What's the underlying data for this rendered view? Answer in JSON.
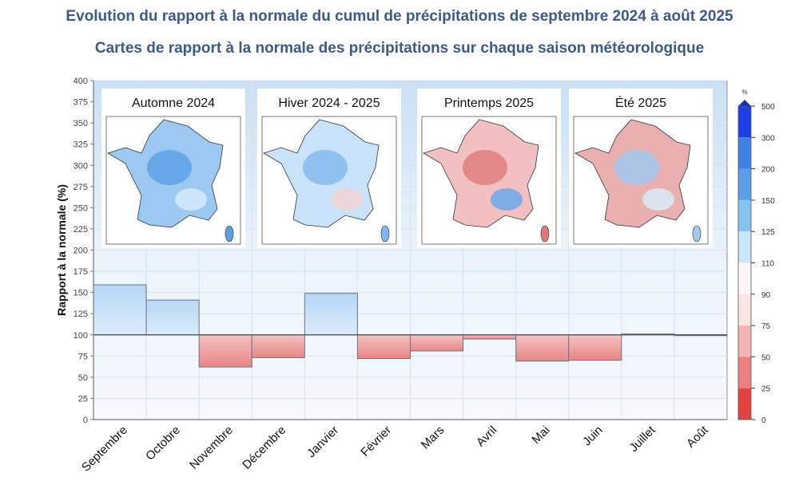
{
  "header": {
    "title": "Evolution du rapport à la normale du cumul de précipitations de septembre 2024 à août 2025",
    "subtitle": "Cartes de rapport à la normale des précipitations sur chaque saison météorologique"
  },
  "chart_data": {
    "type": "bar",
    "title": "Evolution du rapport à la normale du cumul de précipitations de septembre 2024 à août 2025",
    "xlabel": "",
    "ylabel": "Rapport à la normale (%)",
    "ylim": [
      0,
      400
    ],
    "yticks": [
      0,
      25,
      50,
      75,
      100,
      125,
      150,
      175,
      200,
      225,
      250,
      275,
      300,
      325,
      350,
      375,
      400
    ],
    "baseline": 100,
    "grid": true,
    "categories": [
      "Septembre",
      "Octobre",
      "Novembre",
      "Décembre",
      "Janvier",
      "Février",
      "Mars",
      "Avril",
      "Mai",
      "Juin",
      "Juillet",
      "Août"
    ],
    "values": [
      159,
      141,
      62,
      73,
      149,
      72,
      81,
      95,
      69,
      70,
      101,
      100
    ],
    "colors": {
      "above": "#bcdcf7",
      "below": "#ec8f8f",
      "bar_border": "#6b7580",
      "plot_bg": "#eef5fc"
    },
    "season_maps": [
      {
        "label": "Automne 2024",
        "tone": "wet"
      },
      {
        "label": "Hiver 2024 - 2025",
        "tone": "mixed-wet"
      },
      {
        "label": "Printemps 2025",
        "tone": "dry-north"
      },
      {
        "label": "Été 2025",
        "tone": "mixed"
      }
    ],
    "legend": {
      "unit": "%",
      "position": "right",
      "ticks": [
        "500",
        "300",
        "200",
        "150",
        "125",
        "110",
        "90",
        "75",
        "50",
        "25",
        "0"
      ],
      "colors": [
        "#1f3fe6",
        "#3f82e6",
        "#5a9ee8",
        "#84c4f0",
        "#c9e6fb",
        "#fdf6f8",
        "#fbe4e4",
        "#f3b3b3",
        "#ec7e7e",
        "#e3433d"
      ]
    }
  }
}
